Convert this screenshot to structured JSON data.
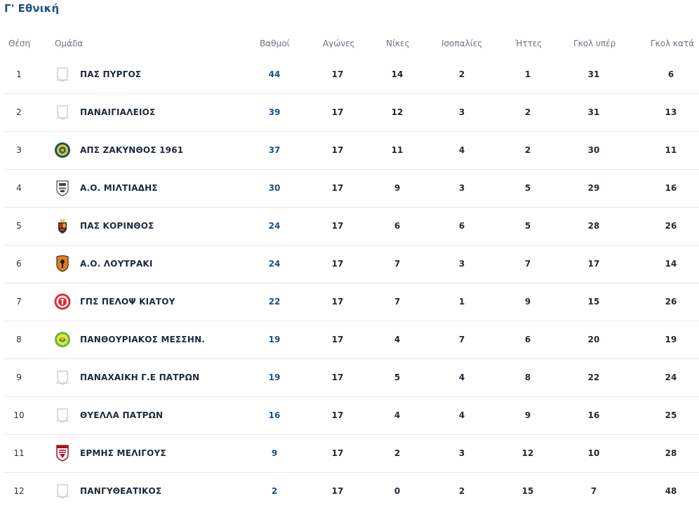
{
  "title": "Γ' Εθνική",
  "headers": {
    "pos": "Θέση",
    "team": "Ομάδα",
    "points": "Βαθμοί",
    "games": "Αγώνες",
    "wins": "Νίκες",
    "draws": "Ισοπαλίες",
    "losses": "Ήττες",
    "goals_for": "Γκολ υπέρ",
    "goals_against": "Γκολ κατά"
  },
  "rows": [
    {
      "pos": "1",
      "team": "ΠΑΣ ΠΥΡΓΟΣ",
      "logo": "placeholder-crest-icon",
      "points": "44",
      "games": "17",
      "wins": "14",
      "draws": "2",
      "losses": "1",
      "goals_for": "31",
      "goals_against": "6"
    },
    {
      "pos": "2",
      "team": "ΠΑΝΑΙΓΙΑΛΕΙΟΣ",
      "logo": "placeholder-crest-icon",
      "points": "39",
      "games": "17",
      "wins": "12",
      "draws": "3",
      "losses": "2",
      "goals_for": "31",
      "goals_against": "13"
    },
    {
      "pos": "3",
      "team": "ΑΠΣ ΖΑΚΥΝΘΟΣ 1961",
      "logo": "zakynthos-crest-icon",
      "points": "37",
      "games": "17",
      "wins": "11",
      "draws": "4",
      "losses": "2",
      "goals_for": "30",
      "goals_against": "11"
    },
    {
      "pos": "4",
      "team": "Α.Ο. ΜΙΛΤΙΑΔΗΣ",
      "logo": "miltiadis-crest-icon",
      "points": "30",
      "games": "17",
      "wins": "9",
      "draws": "3",
      "losses": "5",
      "goals_for": "29",
      "goals_against": "16"
    },
    {
      "pos": "5",
      "team": "ΠΑΣ ΚΟΡΙΝΘΟΣ",
      "logo": "korinthos-crest-icon",
      "points": "24",
      "games": "17",
      "wins": "6",
      "draws": "6",
      "losses": "5",
      "goals_for": "28",
      "goals_against": "26"
    },
    {
      "pos": "6",
      "team": "Α.Ο. ΛΟΥΤΡΑΚΙ",
      "logo": "loutraki-crest-icon",
      "points": "24",
      "games": "17",
      "wins": "7",
      "draws": "3",
      "losses": "7",
      "goals_for": "17",
      "goals_against": "14"
    },
    {
      "pos": "7",
      "team": "ΓΠΣ ΠΕΛΟΨ ΚΙΑΤΟΥ",
      "logo": "pelops-crest-icon",
      "points": "22",
      "games": "17",
      "wins": "7",
      "draws": "1",
      "losses": "9",
      "goals_for": "15",
      "goals_against": "26"
    },
    {
      "pos": "8",
      "team": "ΠΑΝΘΟΥΡΙΑΚΟΣ ΜΕΣΣΗΝ.",
      "logo": "panthouriakos-crest-icon",
      "points": "19",
      "games": "17",
      "wins": "4",
      "draws": "7",
      "losses": "6",
      "goals_for": "20",
      "goals_against": "19"
    },
    {
      "pos": "9",
      "team": "ΠΑΝΑΧΑΙΚΗ Γ.Ε ΠΑΤΡΩΝ",
      "logo": "placeholder-crest-icon",
      "points": "19",
      "games": "17",
      "wins": "5",
      "draws": "4",
      "losses": "8",
      "goals_for": "22",
      "goals_against": "24"
    },
    {
      "pos": "10",
      "team": "ΘΥΕΛΛΑ ΠΑΤΡΩΝ",
      "logo": "placeholder-crest-icon",
      "points": "16",
      "games": "17",
      "wins": "4",
      "draws": "4",
      "losses": "9",
      "goals_for": "16",
      "goals_against": "25"
    },
    {
      "pos": "11",
      "team": "ΕΡΜΗΣ ΜΕΛΙΓΟΥΣ",
      "logo": "ermis-crest-icon",
      "points": "9",
      "games": "17",
      "wins": "2",
      "draws": "3",
      "losses": "12",
      "goals_for": "10",
      "goals_against": "28"
    },
    {
      "pos": "12",
      "team": "ΠΑΝΓΥΘΕΑΤΙΚΟΣ",
      "logo": "placeholder-crest-icon",
      "points": "2",
      "games": "17",
      "wins": "0",
      "draws": "2",
      "losses": "15",
      "goals_for": "7",
      "goals_against": "48"
    }
  ],
  "colors": {
    "title": "#1d4f8f",
    "points": "#1d4f8f",
    "header_text": "#6b7280",
    "row_border": "#e8ebef"
  }
}
